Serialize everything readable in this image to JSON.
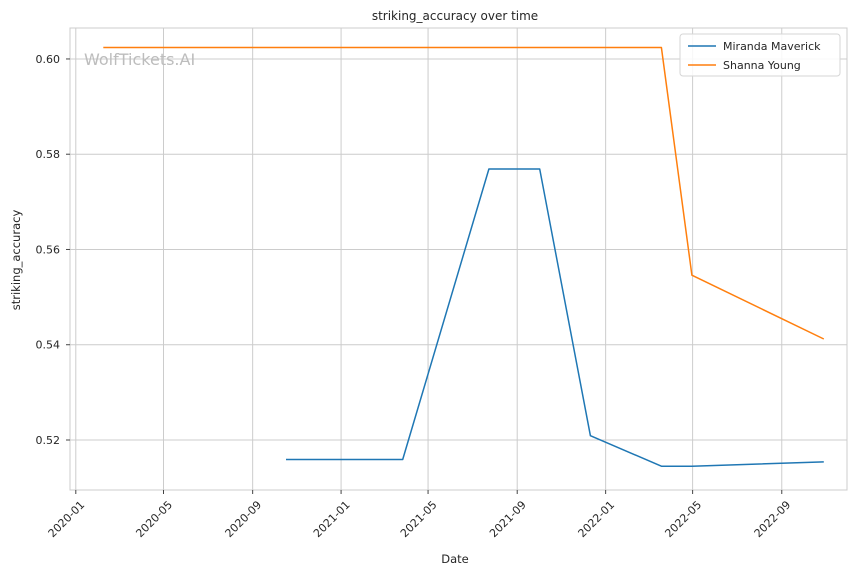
{
  "chart_data": {
    "type": "line",
    "title": "striking_accuracy over time",
    "xlabel": "Date",
    "ylabel": "striking_accuracy",
    "x_type": "date",
    "xlim": [
      "2019-12-24",
      "2022-11-30"
    ],
    "ylim": [
      0.5095,
      0.6065
    ],
    "x_ticks": [
      "2020-01",
      "2020-05",
      "2020-09",
      "2021-01",
      "2021-05",
      "2021-09",
      "2022-01",
      "2022-05",
      "2022-09"
    ],
    "y_ticks": [
      0.52,
      0.54,
      0.56,
      0.58,
      0.6
    ],
    "y_tick_labels": [
      "0.52",
      "0.54",
      "0.56",
      "0.58",
      "0.60"
    ],
    "grid": true,
    "legend_position": "top-right",
    "watermark": "WolfTickets.AI",
    "series": [
      {
        "name": "Miranda Maverick",
        "color": "#1f77b4",
        "points": [
          {
            "x": "2020-10-17",
            "y": 0.5159
          },
          {
            "x": "2021-03-27",
            "y": 0.5159
          },
          {
            "x": "2021-07-24",
            "y": 0.5769
          },
          {
            "x": "2021-10-02",
            "y": 0.5769
          },
          {
            "x": "2021-12-11",
            "y": 0.5209
          },
          {
            "x": "2022-03-19",
            "y": 0.5145
          },
          {
            "x": "2022-04-30",
            "y": 0.5145
          },
          {
            "x": "2022-10-29",
            "y": 0.5154
          }
        ]
      },
      {
        "name": "Shanna Young",
        "color": "#ff7f0e",
        "points": [
          {
            "x": "2020-02-08",
            "y": 0.6024
          },
          {
            "x": "2022-03-19",
            "y": 0.6024
          },
          {
            "x": "2022-04-30",
            "y": 0.5546
          },
          {
            "x": "2022-10-29",
            "y": 0.5412
          }
        ]
      }
    ]
  }
}
